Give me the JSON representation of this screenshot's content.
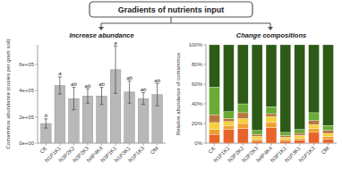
{
  "title": "Gradients of nutrients input",
  "chart_data": [
    {
      "type": "bar",
      "title": "Increase abundance",
      "ylabel": "Comammox abundance (copies per gram soil)",
      "categories": [
        "CK",
        "N1P1K1",
        "N2P2K2",
        "N2P2K3",
        "N4P4K4",
        "N3P1K1",
        "N1P3K1",
        "N1P1K3",
        "OM"
      ],
      "values": [
        150000,
        440000,
        340000,
        360000,
        360000,
        560000,
        390000,
        340000,
        370000
      ],
      "errors": [
        35000,
        65000,
        85000,
        55000,
        65000,
        180000,
        85000,
        45000,
        85000
      ],
      "annotations": [
        "b",
        "a",
        "ab",
        "ab",
        "ab",
        "a",
        "ab",
        "ab",
        "ab"
      ],
      "color": "#b8b8b8",
      "ylim": [
        0,
        750000
      ],
      "yticks": [
        {
          "value": 0,
          "label": "0e+00"
        },
        {
          "value": 200000,
          "label": "2e+05"
        },
        {
          "value": 400000,
          "label": "4e+05"
        },
        {
          "value": 600000,
          "label": "6e+05"
        }
      ]
    },
    {
      "type": "bar",
      "title": "Change compositions",
      "ylabel": "Relative abundance of comammox",
      "stacked": true,
      "categories": [
        "CK",
        "N1P1K1",
        "N2P2K2",
        "N2P2K3",
        "N4P4K4",
        "N3P1K1",
        "N1P3K1",
        "N1P1K3",
        "OM"
      ],
      "series": [
        {
          "color": "#e8642a",
          "values": [
            0.09,
            0.14,
            0.15,
            0.02,
            0.16,
            0.02,
            0.03,
            0.11,
            0.04
          ]
        },
        {
          "color": "#f0a030",
          "values": [
            0.05,
            0.04,
            0.05,
            0.02,
            0.05,
            0.02,
            0.02,
            0.04,
            0.03
          ]
        },
        {
          "color": "#f5d040",
          "values": [
            0.07,
            0.04,
            0.05,
            0.03,
            0.06,
            0.02,
            0.03,
            0.04,
            0.03
          ]
        },
        {
          "color": "#b87840",
          "values": [
            0.08,
            0.03,
            0.06,
            0.02,
            0.03,
            0.02,
            0.02,
            0.04,
            0.03
          ]
        },
        {
          "color": "#6aab35",
          "values": [
            0.28,
            0.07,
            0.09,
            0.04,
            0.07,
            0.03,
            0.04,
            0.08,
            0.05
          ]
        },
        {
          "color": "#2d5a16",
          "values": [
            0.43,
            0.68,
            0.6,
            0.87,
            0.63,
            0.89,
            0.86,
            0.69,
            0.82
          ]
        }
      ],
      "ylim": [
        0,
        1
      ],
      "yticks": [
        {
          "value": 0,
          "label": "0%"
        },
        {
          "value": 0.2,
          "label": "20%"
        },
        {
          "value": 0.4,
          "label": "40%"
        },
        {
          "value": 0.6,
          "label": "60%"
        },
        {
          "value": 0.8,
          "label": "80%"
        },
        {
          "value": 1,
          "label": "100%"
        }
      ]
    }
  ]
}
